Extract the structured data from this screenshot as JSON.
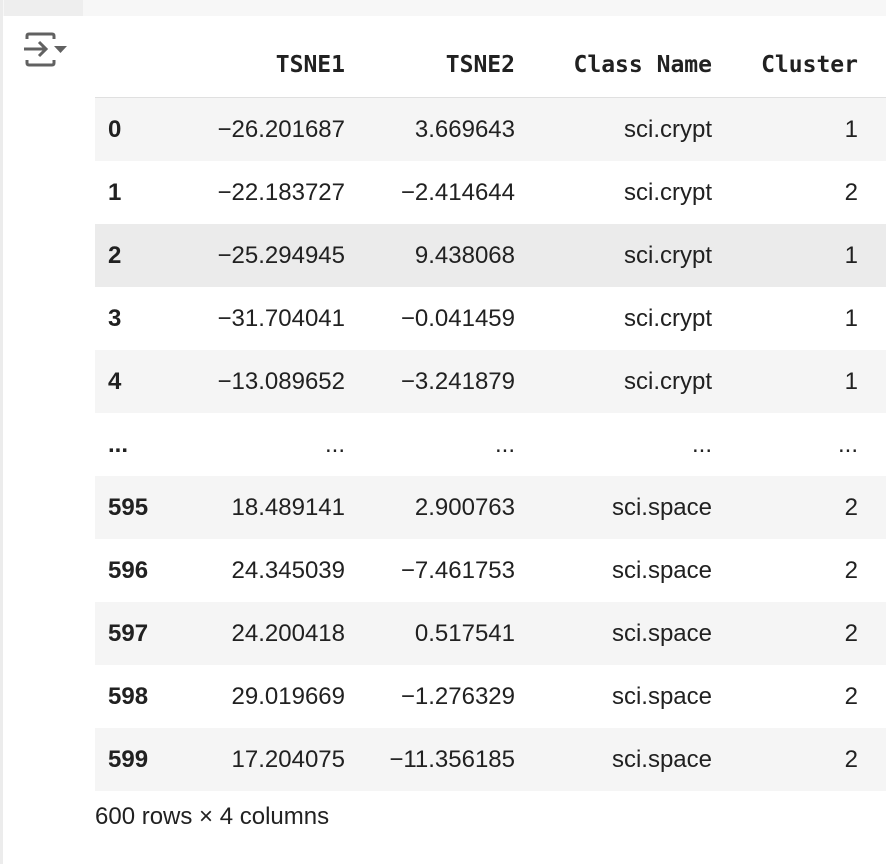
{
  "toolbar": {
    "icon": "convert-table-icon"
  },
  "table": {
    "columns": [
      "",
      "TSNE1",
      "TSNE2",
      "Class Name",
      "Cluster"
    ],
    "rows": [
      [
        "0",
        "−26.201687",
        "3.669643",
        "sci.crypt",
        "1"
      ],
      [
        "1",
        "−22.183727",
        "−2.414644",
        "sci.crypt",
        "2"
      ],
      [
        "2",
        "−25.294945",
        "9.438068",
        "sci.crypt",
        "1"
      ],
      [
        "3",
        "−31.704041",
        "−0.041459",
        "sci.crypt",
        "1"
      ],
      [
        "4",
        "−13.089652",
        "−3.241879",
        "sci.crypt",
        "1"
      ],
      [
        "...",
        "...",
        "...",
        "...",
        "..."
      ],
      [
        "595",
        "18.489141",
        "2.900763",
        "sci.space",
        "2"
      ],
      [
        "596",
        "24.345039",
        "−7.461753",
        "sci.space",
        "2"
      ],
      [
        "597",
        "24.200418",
        "0.517541",
        "sci.space",
        "2"
      ],
      [
        "598",
        "29.019669",
        "−1.276329",
        "sci.space",
        "2"
      ],
      [
        "599",
        "17.204075",
        "−11.356185",
        "sci.space",
        "2"
      ]
    ]
  },
  "footer": "600 rows × 4 columns"
}
